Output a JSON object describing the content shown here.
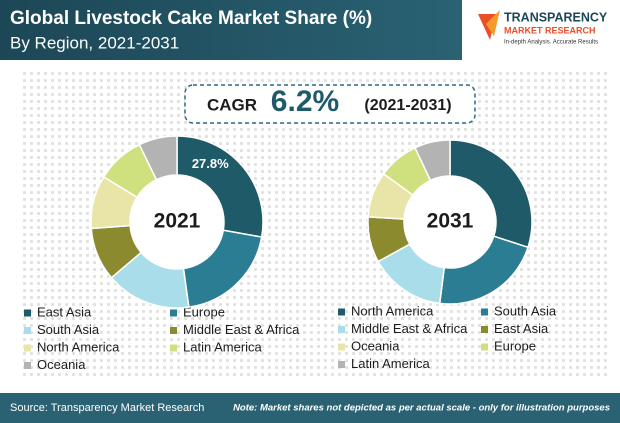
{
  "header": {
    "title": "Global Livestock Cake Market Share (%)",
    "subtitle": "By Region, 2021-2031"
  },
  "logo": {
    "name": "TRANSPARENCY",
    "name2": "MARKET RESEARCH",
    "tagline": "In-depth Analysis. Accurate Results"
  },
  "cagr": {
    "label": "CAGR",
    "value": "6.2%",
    "period": "(2021-2031)"
  },
  "chart_data": [
    {
      "type": "pie",
      "title": "2021",
      "categories": [
        "East Asia",
        "Europe",
        "South Asia",
        "Middle East & Africa",
        "North America",
        "Latin America",
        "Oceania"
      ],
      "values": [
        27.8,
        20,
        16,
        10,
        10,
        9,
        7.2
      ],
      "value_labels": [
        "27.8%",
        null,
        null,
        null,
        null,
        null,
        null
      ],
      "colors": [
        "#1f5a69",
        "#2a7d93",
        "#a9dde9",
        "#8c8a2e",
        "#e9e5a8",
        "#cfe07e",
        "#b3b3b3"
      ]
    },
    {
      "type": "pie",
      "title": "2031",
      "categories": [
        "North America",
        "South Asia",
        "Middle East & Africa",
        "East Asia",
        "Oceania",
        "Europe",
        "Latin America"
      ],
      "values": [
        30,
        22,
        15,
        9,
        9,
        8,
        7
      ],
      "colors": [
        "#1f5a69",
        "#2a7d93",
        "#a9dde9",
        "#8c8a2e",
        "#e9e5a8",
        "#cfe07e",
        "#b3b3b3"
      ]
    }
  ],
  "footer": {
    "source": "Source: Transparency Market Research",
    "note": "Note: Market shares not depicted as per actual scale - only for illustration purposes"
  }
}
